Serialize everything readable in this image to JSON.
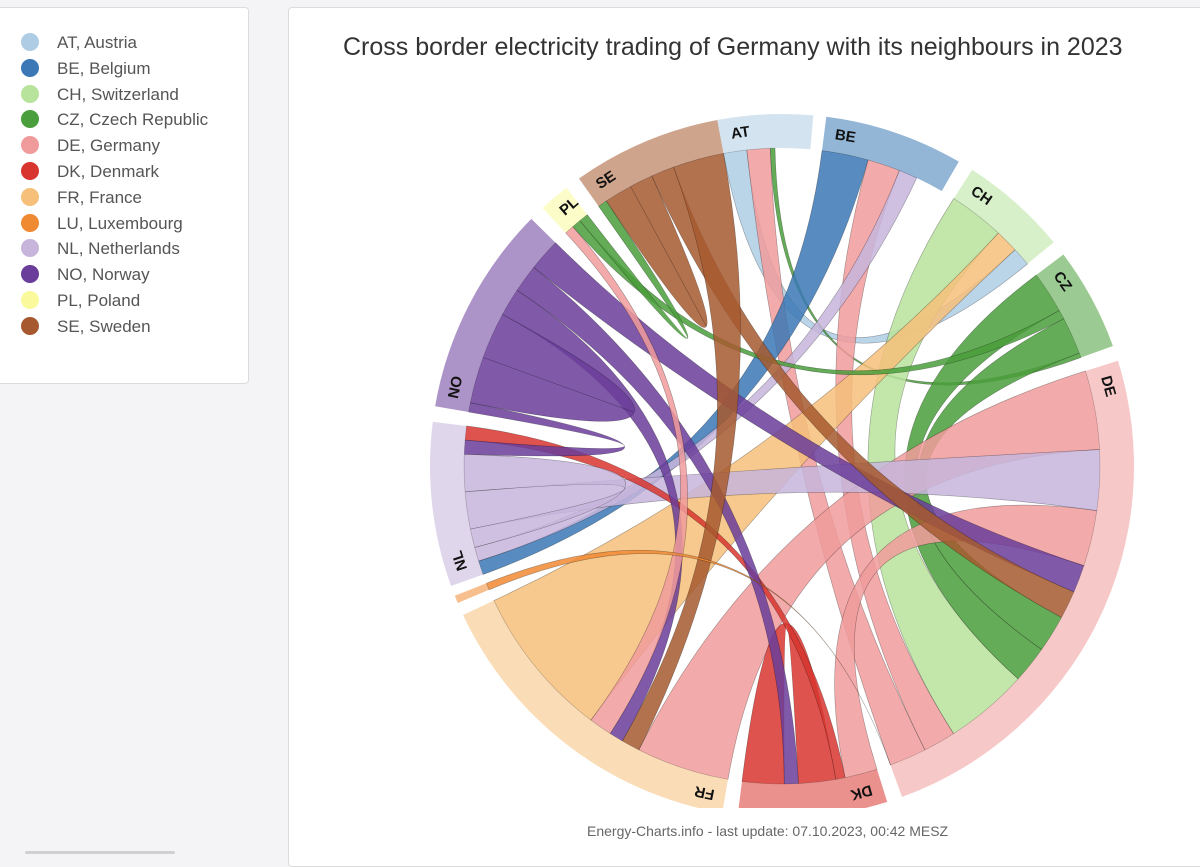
{
  "legend": [
    {
      "code": "AT",
      "label": "AT, Austria",
      "color": "#aecde4"
    },
    {
      "code": "BE",
      "label": "BE, Belgium",
      "color": "#3b78b5"
    },
    {
      "code": "CH",
      "label": "CH, Switzerland",
      "color": "#b8e39c"
    },
    {
      "code": "CZ",
      "label": "CZ, Czech Republic",
      "color": "#4a9e3b"
    },
    {
      "code": "DE",
      "label": "DE, Germany",
      "color": "#f09b9b"
    },
    {
      "code": "DK",
      "label": "DK, Denmark",
      "color": "#d8352f"
    },
    {
      "code": "FR",
      "label": "FR, France",
      "color": "#f6c07a"
    },
    {
      "code": "LU",
      "label": "LU, Luxembourg",
      "color": "#f08a32"
    },
    {
      "code": "NL",
      "label": "NL, Netherlands",
      "color": "#c7b5dc"
    },
    {
      "code": "NO",
      "label": "NO, Norway",
      "color": "#6a3d9a"
    },
    {
      "code": "PL",
      "label": "PL, Poland",
      "color": "#fafa9c"
    },
    {
      "code": "SE",
      "label": "SE, Sweden",
      "color": "#a6592f"
    }
  ],
  "footer": "Energy-Charts.info - last update: 07.10.2023, 00:42 MESZ",
  "chart_data": {
    "type": "chord",
    "title": "Cross border electricity trading of Germany with its neighbours in 2023",
    "unit": "relative (estimated from arc sizes)",
    "groups": [
      {
        "code": "AT",
        "start": 0,
        "end": 18.5
      },
      {
        "code": "BE",
        "start": 21,
        "end": 48
      },
      {
        "code": "CH",
        "start": 51,
        "end": 72
      },
      {
        "code": "CZ",
        "start": 75,
        "end": 95
      },
      {
        "code": "DE",
        "start": 98,
        "end": 201
      },
      {
        "code": "DK",
        "start": 204,
        "end": 233
      },
      {
        "code": "FR",
        "start": 236,
        "end": 301
      },
      {
        "code": "LU",
        "start": 303.5,
        "end": 305
      },
      {
        "code": "NL",
        "start": 307,
        "end": 339
      },
      {
        "code": "NO",
        "start": 342,
        "end": 383
      },
      {
        "code": "PL",
        "start": 386,
        "end": 392
      },
      {
        "code": "SE",
        "start": 395,
        "end": 424
      }
    ],
    "chords": [
      {
        "source": "AT",
        "target": "CH",
        "s": [
          0,
          5
        ],
        "t": [
          68,
          72
        ],
        "color": "#aecde4"
      },
      {
        "source": "AT",
        "target": "DE",
        "s": [
          5,
          10
        ],
        "t": [
          193,
          201
        ],
        "color": "#f09b9b"
      },
      {
        "source": "AT",
        "target": "CZ",
        "s": [
          10,
          11
        ],
        "t": [
          94,
          95
        ],
        "color": "#4a9e3b"
      },
      {
        "source": "BE",
        "target": "NL",
        "s": [
          21,
          31
        ],
        "t": [
          307,
          310
        ],
        "color": "#3b78b5"
      },
      {
        "source": "BE",
        "target": "DE",
        "s": [
          31,
          38
        ],
        "t": [
          186,
          193
        ],
        "color": "#f09b9b"
      },
      {
        "source": "BE",
        "target": "NL",
        "s": [
          38,
          42
        ],
        "t": [
          310,
          313
        ],
        "color": "#c7b5dc"
      },
      {
        "source": "CH",
        "target": "DE",
        "s": [
          51,
          63
        ],
        "t": [
          168,
          186
        ],
        "color": "#b8e39c"
      },
      {
        "source": "CH",
        "target": "FR",
        "s": [
          63,
          68
        ],
        "t": [
          268,
          301
        ],
        "color": "#f6c07a"
      },
      {
        "source": "CZ",
        "target": "DE",
        "s": [
          75,
          84
        ],
        "t": [
          160,
          168
        ],
        "color": "#4a9e3b"
      },
      {
        "source": "CZ",
        "target": "PL",
        "s": [
          84,
          86
        ],
        "t": [
          388,
          390
        ],
        "color": "#4a9e3b"
      },
      {
        "source": "CZ",
        "target": "DE",
        "s": [
          86,
          94
        ],
        "t": [
          152,
          160
        ],
        "color": "#4a9e3b"
      },
      {
        "source": "DE",
        "target": "FR",
        "s": [
          98,
          115
        ],
        "t": [
          236,
          256
        ],
        "color": "#f09b9b"
      },
      {
        "source": "DE",
        "target": "NL",
        "s": [
          115,
          128
        ],
        "t": [
          317,
          325
        ],
        "color": "#c7b5dc"
      },
      {
        "source": "DE",
        "target": "DK",
        "s": [
          128,
          140
        ],
        "t": [
          204,
          211
        ],
        "color": "#f09b9b"
      },
      {
        "source": "DE",
        "target": "NO",
        "s": [
          140,
          146
        ],
        "t": [
          376,
          383
        ],
        "color": "#6a3d9a"
      },
      {
        "source": "DE",
        "target": "SE",
        "s": [
          146,
          152
        ],
        "t": [
          408,
          413
        ],
        "color": "#a6592f"
      },
      {
        "source": "DK",
        "target": "DK",
        "s": [
          213,
          221
        ],
        "t": [
          224,
          233
        ],
        "color": "#d8352f"
      },
      {
        "source": "DK",
        "target": "NL",
        "s": [
          211,
          213
        ],
        "t": [
          336,
          339
        ],
        "color": "#d8352f"
      },
      {
        "source": "DK",
        "target": "NO",
        "s": [
          221,
          224
        ],
        "t": [
          370,
          376
        ],
        "color": "#6a3d9a"
      },
      {
        "source": "FR",
        "target": "SE",
        "s": [
          256,
          260
        ],
        "t": [
          413,
          424
        ],
        "color": "#a6592f"
      },
      {
        "source": "FR",
        "target": "NO",
        "s": [
          260,
          263
        ],
        "t": [
          364,
          370
        ],
        "color": "#6a3d9a"
      },
      {
        "source": "FR",
        "target": "PL",
        "s": [
          263,
          268
        ],
        "t": [
          386,
          388
        ],
        "color": "#f09b9b"
      },
      {
        "source": "NL",
        "target": "NL",
        "s": [
          325,
          333
        ],
        "t": [
          313,
          317
        ],
        "color": "#c7b5dc"
      },
      {
        "source": "NL",
        "target": "NO",
        "s": [
          333,
          336
        ],
        "t": [
          342,
          344
        ],
        "color": "#6a3d9a"
      },
      {
        "source": "NO",
        "target": "NO",
        "s": [
          344,
          354
        ],
        "t": [
          354,
          364
        ],
        "color": "#6a3d9a"
      },
      {
        "source": "PL",
        "target": "SE",
        "s": [
          390,
          392
        ],
        "t": [
          395,
          397
        ],
        "color": "#4a9e3b"
      },
      {
        "source": "SE",
        "target": "SE",
        "s": [
          397,
          403
        ],
        "t": [
          403,
          408
        ],
        "color": "#a6592f"
      },
      {
        "source": "LU",
        "target": "DE",
        "s": [
          303.5,
          305
        ],
        "t": [
          201,
          201
        ],
        "color": "#f08a32"
      }
    ]
  }
}
